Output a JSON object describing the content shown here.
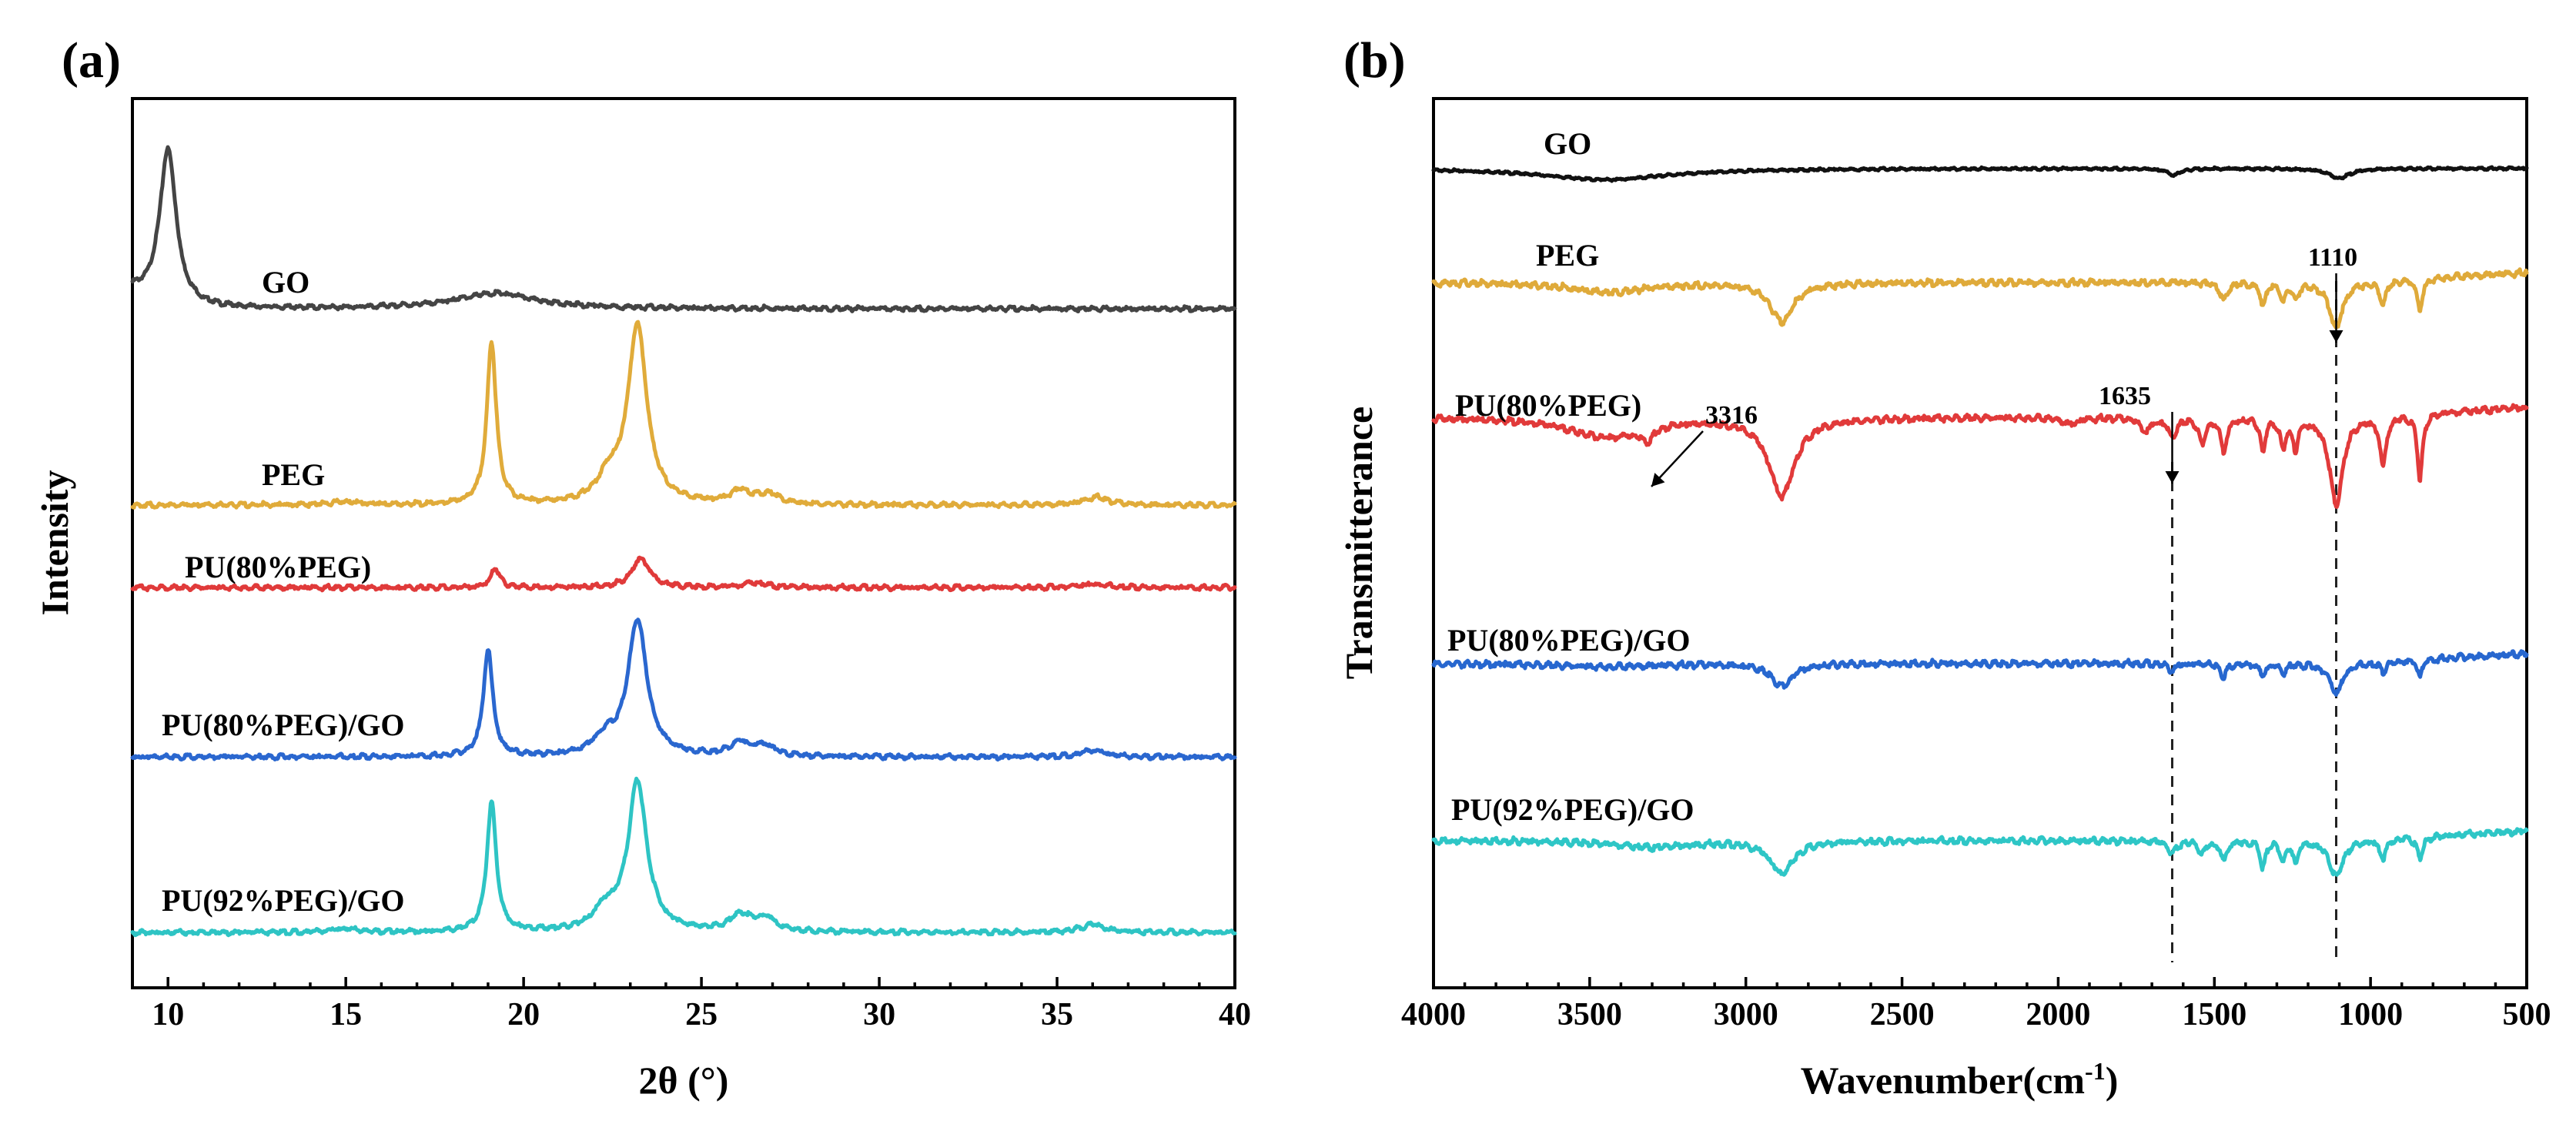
{
  "chart_data": [
    {
      "panel": "(a)",
      "type": "line",
      "title": "",
      "xlabel": "2θ (°)",
      "ylabel": "Intensity",
      "xlim": [
        9,
        40
      ],
      "xticks": [
        10,
        15,
        20,
        25,
        30,
        35,
        40
      ],
      "yticks": [],
      "legend": "inline labels",
      "grid": false,
      "series": [
        {
          "name": "GO",
          "color": "#444444",
          "baseline": 0.93,
          "peaks": [
            [
              10.0,
              0.52,
              0.28
            ],
            [
              19.2,
              0.05,
              1.4
            ]
          ]
        },
        {
          "name": "PEG",
          "color": "#e0ab3a",
          "baseline": 0.0,
          "peaks": [
            [
              19.1,
              0.5,
              0.16
            ],
            [
              23.2,
              0.55,
              0.32
            ],
            [
              22.4,
              0.07,
              0.4
            ],
            [
              26.1,
              0.04,
              0.35
            ],
            [
              26.9,
              0.03,
              0.35
            ],
            [
              36.1,
              0.025,
              0.4
            ],
            [
              15.0,
              0.01,
              0.5
            ]
          ]
        },
        {
          "name": "PU(80%PEG)",
          "color": "#e03a3a",
          "baseline": -0.25,
          "peaks": [
            [
              19.2,
              0.06,
              0.15
            ],
            [
              23.3,
              0.09,
              0.3
            ],
            [
              26.5,
              0.015,
              0.4
            ],
            [
              36.0,
              0.01,
              0.5
            ]
          ]
        },
        {
          "name": "PU(80%PEG)/GO",
          "color": "#2a67cf",
          "baseline": -0.52,
          "peaks": [
            [
              19.0,
              0.33,
              0.16
            ],
            [
              23.2,
              0.42,
              0.32
            ],
            [
              22.3,
              0.05,
              0.4
            ],
            [
              26.1,
              0.04,
              0.35
            ],
            [
              26.8,
              0.03,
              0.35
            ],
            [
              36.0,
              0.02,
              0.4
            ]
          ]
        },
        {
          "name": "PU(92%PEG)/GO",
          "color": "#2ec4c4",
          "baseline": -1.03,
          "peaks": [
            [
              19.1,
              0.4,
              0.16
            ],
            [
              23.2,
              0.46,
              0.32
            ],
            [
              22.3,
              0.06,
              0.4
            ],
            [
              26.1,
              0.05,
              0.35
            ],
            [
              26.8,
              0.04,
              0.35
            ],
            [
              36.0,
              0.025,
              0.4
            ],
            [
              15.0,
              0.01,
              0.5
            ]
          ]
        }
      ]
    },
    {
      "panel": "(b)",
      "type": "line",
      "title": "",
      "xlabel": "Wavenumber(cm",
      "xlabel_sup": "-1",
      "xlabel_end": ")",
      "ylabel": "Transmitterance",
      "xlim": [
        4000,
        500
      ],
      "xticks": [
        4000,
        3500,
        3000,
        2500,
        2000,
        1500,
        1000,
        500
      ],
      "yticks": [],
      "legend": "inline labels",
      "grid": false,
      "reference_lines": [
        1635,
        1110
      ],
      "annotations": [
        {
          "text": "1110",
          "x": 1110
        },
        {
          "text": "1635",
          "x": 1635
        },
        {
          "text": "3316",
          "x": 3316
        }
      ],
      "series": [
        {
          "name": "GO",
          "color": "#111111",
          "baseline": 1.0,
          "bands": [
            [
              3450,
              0.035,
              250
            ],
            [
              1630,
              0.02,
              25
            ],
            [
              1100,
              0.03,
              40
            ]
          ]
        },
        {
          "name": "PEG",
          "color": "#dfaa3a",
          "baseline": 0.78,
          "bands": [
            [
              3440,
              0.03,
              150
            ],
            [
              2885,
              0.12,
              45
            ],
            [
              1470,
              0.06,
              12
            ],
            [
              1345,
              0.07,
              10
            ],
            [
              1280,
              0.05,
              10
            ],
            [
              1240,
              0.05,
              10
            ],
            [
              1110,
              0.14,
              25
            ],
            [
              960,
              0.07,
              12
            ],
            [
              842,
              0.1,
              10
            ]
          ]
        },
        {
          "name": "PU(80%PEG)",
          "color": "#e13a3a",
          "baseline": 0.55,
          "bands": [
            [
              3450,
              0.06,
              150
            ],
            [
              3316,
              0.04,
              25
            ],
            [
              2885,
              0.24,
              50
            ],
            [
              1960,
              0.02,
              30
            ],
            [
              1720,
              0.04,
              20
            ],
            [
              1635,
              0.06,
              15
            ],
            [
              1540,
              0.08,
              12
            ],
            [
              1470,
              0.1,
              12
            ],
            [
              1345,
              0.1,
              10
            ],
            [
              1280,
              0.09,
              10
            ],
            [
              1240,
              0.09,
              10
            ],
            [
              1110,
              0.27,
              25
            ],
            [
              960,
              0.15,
              12
            ],
            [
              842,
              0.2,
              10
            ]
          ]
        },
        {
          "name": "PU(80%PEG)/GO",
          "color": "#2767cf",
          "baseline": 0.31,
          "bands": [
            [
              3450,
              0.01,
              200
            ],
            [
              2885,
              0.07,
              40
            ],
            [
              1635,
              0.02,
              15
            ],
            [
              1470,
              0.04,
              12
            ],
            [
              1345,
              0.04,
              10
            ],
            [
              1280,
              0.03,
              10
            ],
            [
              1110,
              0.09,
              25
            ],
            [
              960,
              0.03,
              12
            ],
            [
              842,
              0.05,
              10
            ]
          ]
        },
        {
          "name": "PU(92%PEG)/GO",
          "color": "#2ec6c6",
          "baseline": 0.1,
          "bands": [
            [
              3300,
              0.02,
              150
            ],
            [
              2885,
              0.1,
              45
            ],
            [
              1635,
              0.04,
              15
            ],
            [
              1540,
              0.04,
              12
            ],
            [
              1470,
              0.06,
              12
            ],
            [
              1345,
              0.08,
              10
            ],
            [
              1280,
              0.06,
              10
            ],
            [
              1240,
              0.06,
              10
            ],
            [
              1110,
              0.11,
              25
            ],
            [
              960,
              0.06,
              12
            ],
            [
              842,
              0.07,
              10
            ]
          ]
        }
      ]
    }
  ]
}
